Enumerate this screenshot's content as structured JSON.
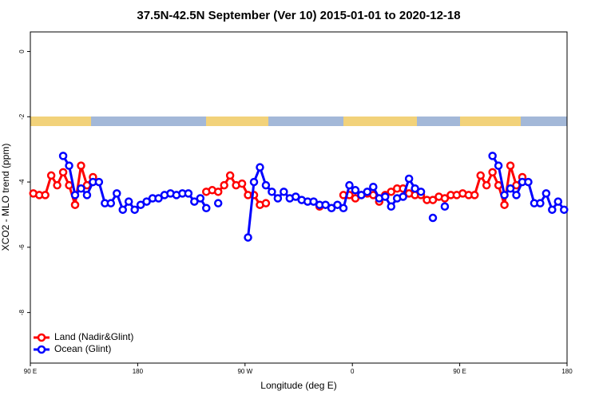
{
  "chart_data": {
    "type": "line",
    "title": "37.5N-42.5N September (Ver 10)   2015-01-01 to 2020-12-18",
    "x_label": "Longitude (deg E)",
    "y_label": "XCO2 - MLO trend (ppm)",
    "x": [
      92.5,
      97.5,
      102.5,
      107.5,
      112.5,
      117.5,
      122.5,
      127.5,
      132.5,
      137.5,
      142.5,
      147.5,
      152.5,
      157.5,
      162.5,
      167.5,
      172.5,
      177.5,
      182.5,
      187.5,
      192.5,
      197.5,
      202.5,
      207.5,
      212.5,
      217.5,
      222.5,
      227.5,
      232.5,
      237.5,
      242.5,
      247.5,
      252.5,
      257.5,
      262.5,
      267.5,
      272.5,
      277.5,
      282.5,
      287.5,
      292.5,
      297.5,
      302.5,
      307.5,
      312.5,
      317.5,
      322.5,
      327.5,
      332.5,
      337.5,
      342.5,
      347.5,
      352.5,
      357.5,
      362.5,
      367.5,
      372.5,
      377.5,
      382.5,
      387.5,
      392.5,
      397.5,
      402.5,
      407.5,
      412.5,
      417.5,
      422.5,
      427.5,
      432.5,
      437.5,
      442.5,
      447.5,
      452.5,
      457.5,
      462.5,
      467.5,
      472.5,
      477.5,
      482.5,
      487.5,
      492.5,
      497.5,
      502.5,
      507.5,
      512.5,
      517.5,
      522.5,
      527.5,
      532.5,
      537.5
    ],
    "series": [
      {
        "name": "Land (Nadir&Glint)",
        "color": "#ff0000",
        "values": [
          -4.35,
          -4.4,
          -4.4,
          -3.8,
          -4.1,
          -3.7,
          -4.1,
          -4.7,
          -3.5,
          -4.1,
          -3.85,
          null,
          null,
          null,
          null,
          null,
          null,
          null,
          null,
          null,
          null,
          null,
          null,
          null,
          null,
          null,
          null,
          null,
          null,
          -4.3,
          -4.25,
          -4.3,
          -4.1,
          -3.8,
          -4.1,
          -4.05,
          -4.4,
          -4.4,
          -4.7,
          -4.65,
          null,
          null,
          null,
          null,
          null,
          null,
          null,
          null,
          -4.75,
          null,
          null,
          null,
          -4.4,
          -4.4,
          -4.5,
          -4.4,
          -4.35,
          -4.4,
          -4.6,
          -4.4,
          -4.3,
          -4.2,
          -4.2,
          -4.35,
          -4.4,
          -4.4,
          -4.55,
          -4.55,
          -4.45,
          -4.5,
          -4.4,
          -4.4,
          -4.35,
          -4.4,
          -4.4,
          -3.8,
          -4.1,
          -3.7,
          -4.1,
          -4.7,
          -3.5,
          -4.1,
          -3.85,
          null,
          null,
          null,
          null,
          null,
          null,
          null
        ]
      },
      {
        "name": "Ocean (Glint)",
        "color": "#0000ff",
        "values": [
          null,
          null,
          null,
          null,
          null,
          -3.2,
          -3.5,
          -4.4,
          -4.2,
          -4.4,
          -4.0,
          -4.0,
          -4.65,
          -4.65,
          -4.35,
          -4.85,
          -4.6,
          -4.85,
          -4.7,
          -4.6,
          -4.5,
          -4.5,
          -4.4,
          -4.35,
          -4.4,
          -4.35,
          -4.35,
          -4.6,
          -4.5,
          -4.8,
          null,
          -4.65,
          null,
          null,
          null,
          null,
          -5.7,
          -4.0,
          -3.55,
          -4.1,
          -4.3,
          -4.5,
          -4.3,
          -4.5,
          -4.45,
          -4.55,
          -4.6,
          -4.6,
          -4.7,
          -4.7,
          -4.8,
          -4.7,
          -4.8,
          -4.1,
          -4.25,
          -4.4,
          -4.3,
          -4.15,
          -4.5,
          -4.45,
          -4.75,
          -4.5,
          -4.45,
          -3.9,
          -4.2,
          -4.3,
          null,
          -5.1,
          null,
          -4.75,
          null,
          null,
          null,
          null,
          null,
          null,
          null,
          -3.2,
          -3.5,
          -4.4,
          -4.2,
          -4.4,
          -4.0,
          -4.0,
          -4.65,
          -4.65,
          -4.35,
          -4.85,
          -4.6,
          -4.85
        ]
      }
    ],
    "xlim": [
      90,
      540
    ],
    "xticks": [
      {
        "value": 90,
        "label": "90 E"
      },
      180,
      {
        "value": 270,
        "label": "90 W"
      },
      {
        "value": 360,
        "label": "0"
      },
      {
        "value": 450,
        "label": "90 E"
      },
      {
        "value": 540,
        "label": "180"
      }
    ],
    "ylim": [
      -9.55,
      0.6
    ],
    "yticks": [
      0,
      -2,
      -4,
      -6,
      -8
    ],
    "legend": "bottom-left"
  }
}
